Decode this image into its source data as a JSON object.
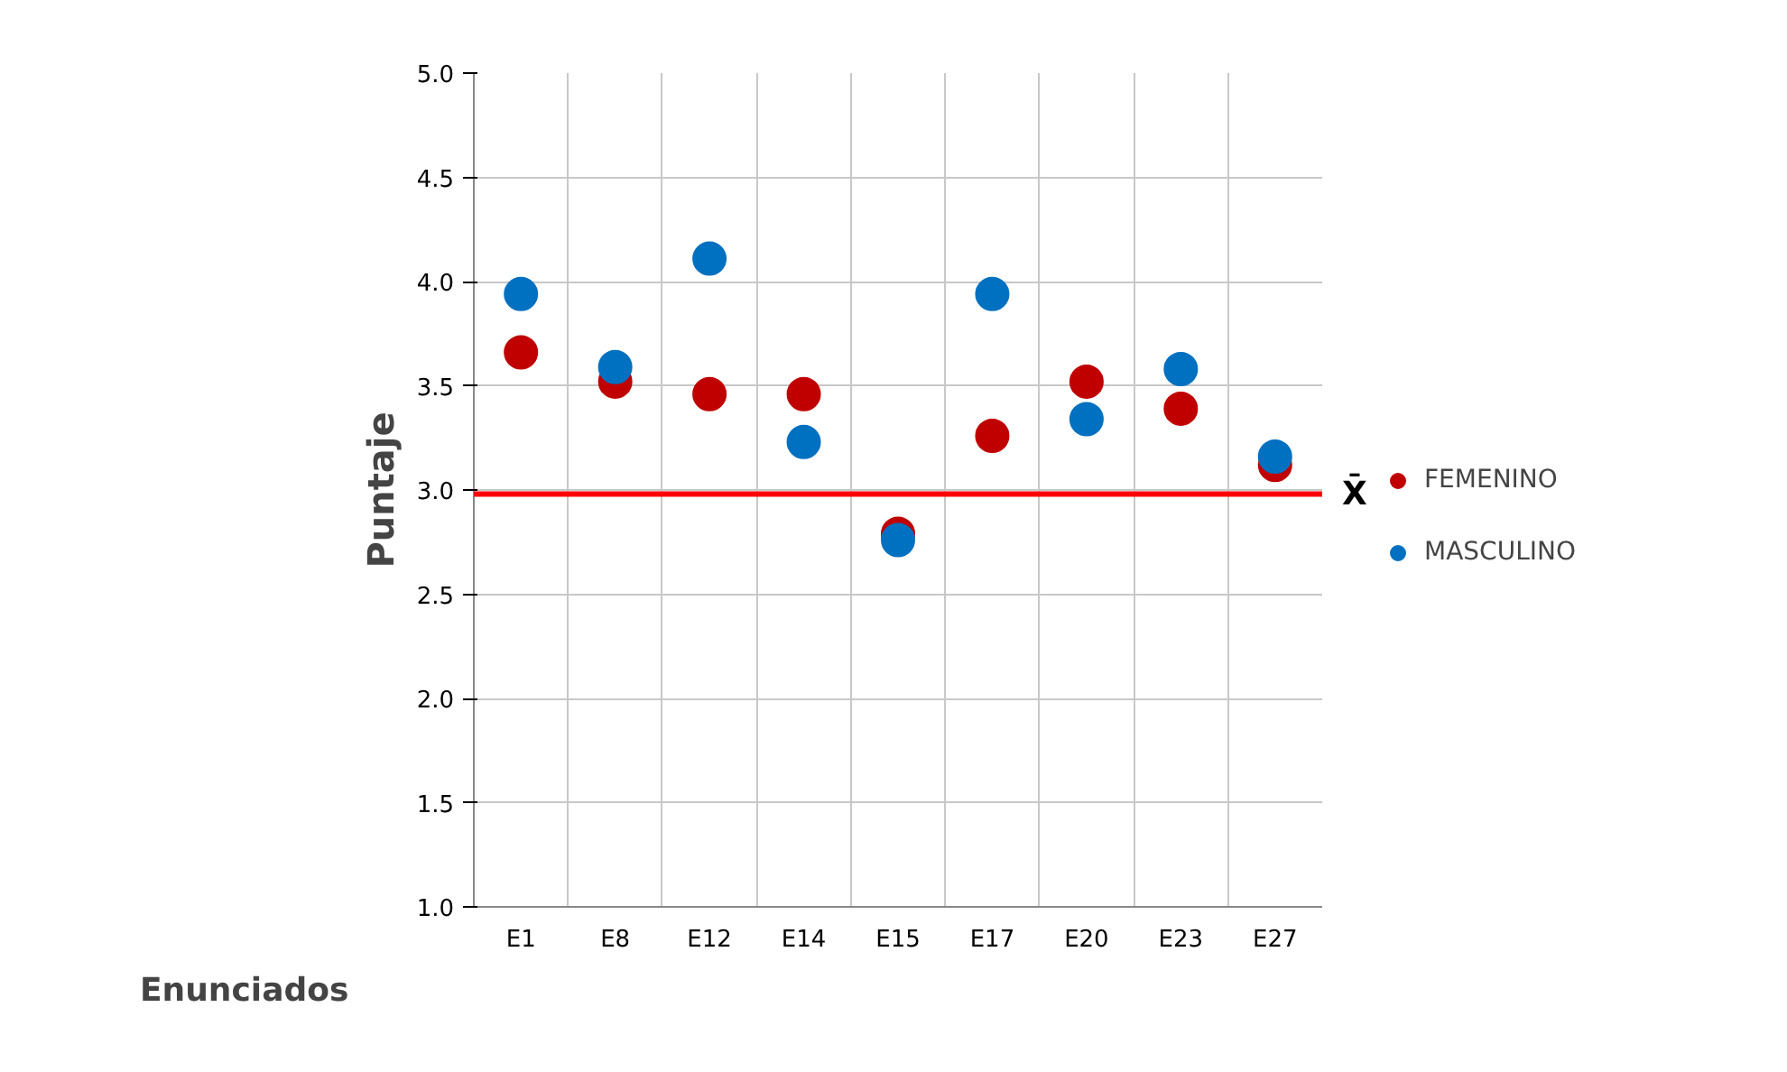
{
  "chart_data": {
    "type": "scatter",
    "xlabel": "Enunciados",
    "ylabel": "Puntaje",
    "categories": [
      "E1",
      "E8",
      "E12",
      "E14",
      "E15",
      "E17",
      "E20",
      "E23",
      "E27"
    ],
    "series": [
      {
        "name": "FEMENINO",
        "color": "#c00000",
        "values": [
          3.66,
          3.52,
          3.46,
          3.46,
          2.79,
          3.26,
          3.52,
          3.39,
          3.12
        ]
      },
      {
        "name": "MASCULINO",
        "color": "#0070c0",
        "values": [
          3.94,
          3.59,
          4.11,
          3.23,
          2.76,
          3.94,
          3.34,
          3.58,
          3.16
        ]
      }
    ],
    "ylim": [
      1.0,
      5.0
    ],
    "yticks": [
      {
        "value": 1,
        "label": "1.0"
      },
      {
        "value": 1.5,
        "label": "1.5"
      },
      {
        "value": 2,
        "label": "2.0"
      },
      {
        "value": 2.5,
        "label": "2.5"
      },
      {
        "value": 3,
        "label": "3.0"
      },
      {
        "value": 3.5,
        "label": "3.5"
      },
      {
        "value": 4,
        "label": "4.0"
      },
      {
        "value": 4.5,
        "label": "4.5"
      },
      {
        "value": 5,
        "label": "5.0"
      }
    ],
    "ref_lines": [
      {
        "axis": "y",
        "value": 2.98,
        "label": "X̄",
        "color": "#ff0000"
      }
    ],
    "grid": true,
    "legend": "right",
    "marker": "circle"
  }
}
